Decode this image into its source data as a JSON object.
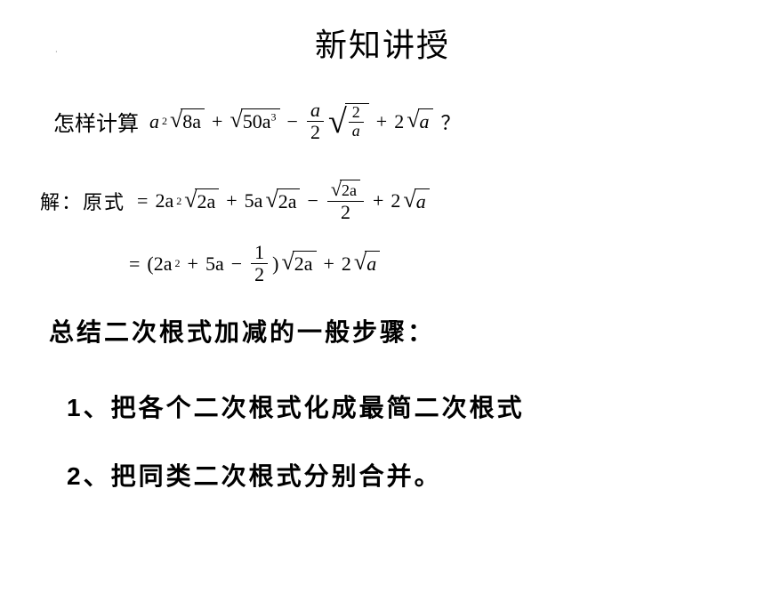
{
  "title": "新知讲授",
  "question_label": "怎样计算",
  "question_mark": "？",
  "q": {
    "t1_coef": "a",
    "t1_sup": "2",
    "t1_rad": "8a",
    "t2_rad": "50a",
    "t2_sup": "3",
    "t3_num": "a",
    "t3_den": "2",
    "t3_rad_num": "2",
    "t3_rad_den": "a",
    "t4_coef": "2",
    "t4_rad": "a"
  },
  "solution_label": "解：原式",
  "s1": {
    "t1_coef": "2a",
    "t1_sup": "2",
    "t1_rad": "2a",
    "t2_coef": "5a",
    "t2_rad": "2a",
    "t3_num_rad": "2a",
    "t3_den": "2",
    "t4_coef": "2",
    "t4_rad": "a"
  },
  "s2": {
    "open": "(2a",
    "sup": "2",
    "mid1": "5a",
    "f_num": "1",
    "f_den": "2",
    "close": ")",
    "rad1": "2a",
    "coef2": "2",
    "rad2": "a"
  },
  "summary": "总结二次根式加减的一般步骤：",
  "step1_num": "1",
  "step1_sep": "、",
  "step1_text": "把各个二次根式化成最简二次根式",
  "step2_num": "2",
  "step2_sep": "、",
  "step2_text": "把同类二次根式分别合并。",
  "eq": "=",
  "plus": "+",
  "minus": "−",
  "colors": {
    "bg": "#ffffff",
    "text": "#000000"
  }
}
